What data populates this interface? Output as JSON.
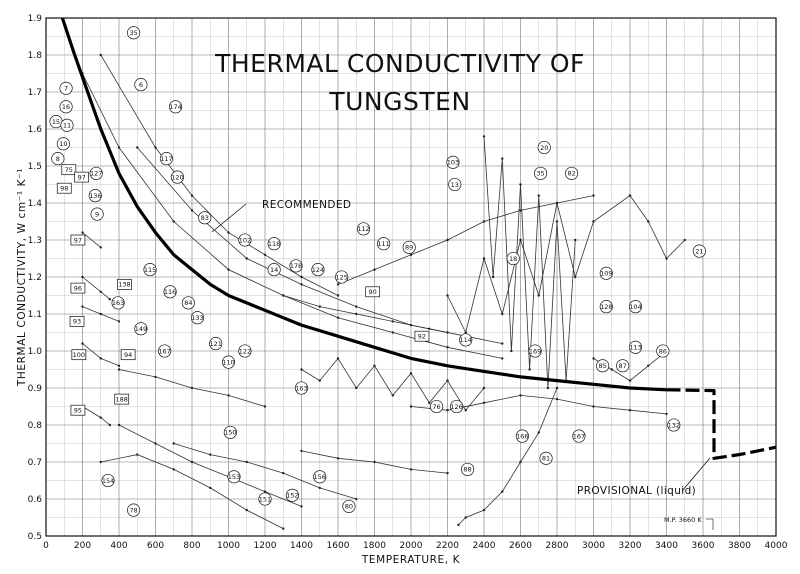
{
  "chart_data": {
    "type": "line",
    "title": [
      "THERMAL CONDUCTIVITY OF",
      "TUNGSTEN"
    ],
    "xlabel": "TEMPERATURE, K",
    "ylabel": "THERMAL CONDUCTIVITY, W cm⁻¹ K⁻¹",
    "xlim": [
      0,
      4000
    ],
    "ylim": [
      0.5,
      1.9
    ],
    "grid": true,
    "x_ticks": [
      0,
      200,
      400,
      600,
      800,
      1000,
      1200,
      1400,
      1600,
      1800,
      2000,
      2200,
      2400,
      2600,
      2800,
      3000,
      3200,
      3400,
      3600,
      3800,
      4000
    ],
    "y_ticks": [
      0.5,
      0.6,
      0.7,
      0.8,
      0.9,
      1.0,
      1.1,
      1.2,
      1.3,
      1.4,
      1.5,
      1.6,
      1.7,
      1.8,
      1.9
    ],
    "y_tick_labels": [
      "0.5",
      "0.6",
      "0.7",
      "0.8",
      "0.9",
      "1.0",
      "1.1",
      "1.2",
      "1.3",
      "1.4",
      "1.5",
      "1.6",
      "1.7",
      "1.8",
      "1.9"
    ],
    "annotations": {
      "recommended": "RECOMMENDED",
      "provisional": "PROVISIONAL (liquid)",
      "melting_point": "M.P. 3660 K"
    },
    "series": [
      {
        "name": "RECOMMENDED",
        "style": "thick",
        "x": [
          90,
          150,
          200,
          250,
          300,
          350,
          400,
          500,
          600,
          700,
          800,
          900,
          1000,
          1200,
          1400,
          1600,
          1800,
          2000,
          2200,
          2400,
          2600,
          2800,
          3000,
          3200,
          3400
        ],
        "y": [
          1.9,
          1.81,
          1.74,
          1.67,
          1.6,
          1.54,
          1.48,
          1.39,
          1.32,
          1.26,
          1.22,
          1.18,
          1.15,
          1.11,
          1.07,
          1.04,
          1.01,
          0.98,
          0.96,
          0.945,
          0.93,
          0.92,
          0.91,
          0.9,
          0.895
        ]
      },
      {
        "name": "PROVISIONAL",
        "style": "thick-dashed",
        "x": [
          3400,
          3660,
          3660,
          3660,
          3800,
          4000
        ],
        "y": [
          0.895,
          0.893,
          0.893,
          0.71,
          0.72,
          0.74
        ]
      }
    ],
    "curve_labels": [
      {
        "id": "35",
        "x": 480,
        "y": 1.86,
        "shape": "circle"
      },
      {
        "id": "6",
        "x": 520,
        "y": 1.72,
        "shape": "circle"
      },
      {
        "id": "174",
        "x": 710,
        "y": 1.66,
        "shape": "circle"
      },
      {
        "id": "7",
        "x": 110,
        "y": 1.71,
        "shape": "circle"
      },
      {
        "id": "16",
        "x": 110,
        "y": 1.66,
        "shape": "circle"
      },
      {
        "id": "15",
        "x": 55,
        "y": 1.62,
        "shape": "circle"
      },
      {
        "id": "11",
        "x": 115,
        "y": 1.61,
        "shape": "circle"
      },
      {
        "id": "10",
        "x": 95,
        "y": 1.56,
        "shape": "circle"
      },
      {
        "id": "8",
        "x": 65,
        "y": 1.52,
        "shape": "circle"
      },
      {
        "id": "75",
        "x": 125,
        "y": 1.49,
        "shape": "square"
      },
      {
        "id": "97",
        "x": 195,
        "y": 1.47,
        "shape": "square"
      },
      {
        "id": "127",
        "x": 275,
        "y": 1.48,
        "shape": "circle"
      },
      {
        "id": "98",
        "x": 100,
        "y": 1.44,
        "shape": "square"
      },
      {
        "id": "136",
        "x": 270,
        "y": 1.42,
        "shape": "circle"
      },
      {
        "id": "117",
        "x": 660,
        "y": 1.52,
        "shape": "circle"
      },
      {
        "id": "120",
        "x": 720,
        "y": 1.47,
        "shape": "circle"
      },
      {
        "id": "9",
        "x": 280,
        "y": 1.37,
        "shape": "circle"
      },
      {
        "id": "83",
        "x": 870,
        "y": 1.36,
        "shape": "circle"
      },
      {
        "id": "97",
        "x": 175,
        "y": 1.3,
        "shape": "square"
      },
      {
        "id": "102",
        "x": 1090,
        "y": 1.3,
        "shape": "circle"
      },
      {
        "id": "118",
        "x": 1250,
        "y": 1.29,
        "shape": "circle"
      },
      {
        "id": "115",
        "x": 570,
        "y": 1.22,
        "shape": "circle"
      },
      {
        "id": "14",
        "x": 1250,
        "y": 1.22,
        "shape": "circle"
      },
      {
        "id": "178",
        "x": 1370,
        "y": 1.23,
        "shape": "circle"
      },
      {
        "id": "124",
        "x": 1490,
        "y": 1.22,
        "shape": "circle"
      },
      {
        "id": "125",
        "x": 1620,
        "y": 1.2,
        "shape": "circle"
      },
      {
        "id": "112",
        "x": 1740,
        "y": 1.33,
        "shape": "circle"
      },
      {
        "id": "111",
        "x": 1850,
        "y": 1.29,
        "shape": "circle"
      },
      {
        "id": "89",
        "x": 1990,
        "y": 1.28,
        "shape": "circle"
      },
      {
        "id": "96",
        "x": 175,
        "y": 1.17,
        "shape": "square"
      },
      {
        "id": "138",
        "x": 430,
        "y": 1.18,
        "shape": "square"
      },
      {
        "id": "116",
        "x": 680,
        "y": 1.16,
        "shape": "circle"
      },
      {
        "id": "90",
        "x": 1790,
        "y": 1.16,
        "shape": "square"
      },
      {
        "id": "84",
        "x": 780,
        "y": 1.13,
        "shape": "circle"
      },
      {
        "id": "163",
        "x": 395,
        "y": 1.13,
        "shape": "circle"
      },
      {
        "id": "133",
        "x": 830,
        "y": 1.09,
        "shape": "circle"
      },
      {
        "id": "93",
        "x": 170,
        "y": 1.08,
        "shape": "square"
      },
      {
        "id": "149",
        "x": 520,
        "y": 1.06,
        "shape": "circle"
      },
      {
        "id": "121",
        "x": 930,
        "y": 1.02,
        "shape": "circle"
      },
      {
        "id": "122",
        "x": 1090,
        "y": 1.0,
        "shape": "circle"
      },
      {
        "id": "92",
        "x": 2060,
        "y": 1.04,
        "shape": "square"
      },
      {
        "id": "114",
        "x": 2300,
        "y": 1.03,
        "shape": "circle"
      },
      {
        "id": "167",
        "x": 650,
        "y": 1.0,
        "shape": "circle"
      },
      {
        "id": "100",
        "x": 180,
        "y": 0.99,
        "shape": "square"
      },
      {
        "id": "94",
        "x": 450,
        "y": 0.99,
        "shape": "square"
      },
      {
        "id": "110",
        "x": 1000,
        "y": 0.97,
        "shape": "circle"
      },
      {
        "id": "163",
        "x": 1400,
        "y": 0.9,
        "shape": "circle"
      },
      {
        "id": "169",
        "x": 2680,
        "y": 1.0,
        "shape": "circle"
      },
      {
        "id": "85",
        "x": 3050,
        "y": 0.96,
        "shape": "circle"
      },
      {
        "id": "87",
        "x": 3160,
        "y": 0.96,
        "shape": "circle"
      },
      {
        "id": "86",
        "x": 3380,
        "y": 1.0,
        "shape": "circle"
      },
      {
        "id": "113",
        "x": 3230,
        "y": 1.01,
        "shape": "circle"
      },
      {
        "id": "128",
        "x": 3070,
        "y": 1.12,
        "shape": "circle"
      },
      {
        "id": "104",
        "x": 3230,
        "y": 1.12,
        "shape": "circle"
      },
      {
        "id": "109",
        "x": 3070,
        "y": 1.21,
        "shape": "circle"
      },
      {
        "id": "21",
        "x": 3580,
        "y": 1.27,
        "shape": "circle"
      },
      {
        "id": "18",
        "x": 2560,
        "y": 1.25,
        "shape": "circle"
      },
      {
        "id": "13",
        "x": 2240,
        "y": 1.45,
        "shape": "circle"
      },
      {
        "id": "20",
        "x": 2730,
        "y": 1.55,
        "shape": "circle"
      },
      {
        "id": "35",
        "x": 2710,
        "y": 1.48,
        "shape": "circle"
      },
      {
        "id": "82",
        "x": 2880,
        "y": 1.48,
        "shape": "circle"
      },
      {
        "id": "103",
        "x": 2230,
        "y": 1.51,
        "shape": "circle"
      },
      {
        "id": "188",
        "x": 415,
        "y": 0.87,
        "shape": "square"
      },
      {
        "id": "95",
        "x": 175,
        "y": 0.84,
        "shape": "square"
      },
      {
        "id": "150",
        "x": 1010,
        "y": 0.78,
        "shape": "circle"
      },
      {
        "id": "76",
        "x": 2140,
        "y": 0.85,
        "shape": "circle"
      },
      {
        "id": "126",
        "x": 2250,
        "y": 0.85,
        "shape": "circle"
      },
      {
        "id": "166",
        "x": 2610,
        "y": 0.77,
        "shape": "circle"
      },
      {
        "id": "167",
        "x": 2920,
        "y": 0.77,
        "shape": "circle"
      },
      {
        "id": "132",
        "x": 3440,
        "y": 0.8,
        "shape": "circle"
      },
      {
        "id": "81",
        "x": 2740,
        "y": 0.71,
        "shape": "circle"
      },
      {
        "id": "88",
        "x": 2310,
        "y": 0.68,
        "shape": "circle"
      },
      {
        "id": "153",
        "x": 1030,
        "y": 0.66,
        "shape": "circle"
      },
      {
        "id": "156",
        "x": 1500,
        "y": 0.66,
        "shape": "circle"
      },
      {
        "id": "154",
        "x": 340,
        "y": 0.65,
        "shape": "circle"
      },
      {
        "id": "151",
        "x": 1200,
        "y": 0.6,
        "shape": "circle"
      },
      {
        "id": "152",
        "x": 1350,
        "y": 0.61,
        "shape": "circle"
      },
      {
        "id": "80",
        "x": 1660,
        "y": 0.58,
        "shape": "circle"
      },
      {
        "id": "78",
        "x": 480,
        "y": 0.57,
        "shape": "circle"
      }
    ],
    "experimental_lines": [
      {
        "x": [
          300,
          600,
          800,
          1000,
          1200,
          1400,
          1600
        ],
        "y": [
          1.8,
          1.55,
          1.42,
          1.32,
          1.26,
          1.2,
          1.15
        ]
      },
      {
        "x": [
          500,
          800,
          1100,
          1400,
          1700,
          2000,
          2200
        ],
        "y": [
          1.55,
          1.38,
          1.25,
          1.18,
          1.12,
          1.07,
          1.05
        ]
      },
      {
        "x": [
          200,
          400,
          700,
          1000,
          1300,
          1600,
          1900,
          2200,
          2500
        ],
        "y": [
          1.75,
          1.55,
          1.35,
          1.22,
          1.15,
          1.09,
          1.05,
          1.01,
          0.98
        ]
      },
      {
        "x": [
          1600,
          1800,
          2000,
          2200,
          2400,
          2600,
          2800,
          3000
        ],
        "y": [
          1.18,
          1.22,
          1.26,
          1.3,
          1.35,
          1.38,
          1.4,
          1.42
        ]
      },
      {
        "x": [
          1300,
          1500,
          1700,
          1900,
          2100,
          2300,
          2500
        ],
        "y": [
          1.15,
          1.12,
          1.1,
          1.08,
          1.06,
          1.04,
          1.02
        ]
      },
      {
        "x": [
          2400,
          2450,
          2500,
          2550,
          2600,
          2650,
          2700,
          2750,
          2800,
          2850,
          2900
        ],
        "y": [
          1.58,
          1.2,
          1.52,
          1.0,
          1.45,
          0.95,
          1.42,
          0.9,
          1.35,
          0.92,
          1.3
        ]
      },
      {
        "x": [
          2200,
          2300,
          2400,
          2500,
          2600,
          2700,
          2800,
          2900,
          3000,
          3200
        ],
        "y": [
          1.15,
          1.05,
          1.25,
          1.1,
          1.3,
          1.15,
          1.4,
          1.2,
          1.35,
          1.42
        ]
      },
      {
        "x": [
          3200,
          3300,
          3400,
          3500
        ],
        "y": [
          1.42,
          1.35,
          1.25,
          1.3
        ]
      },
      {
        "x": [
          400,
          600,
          800,
          1000,
          1200
        ],
        "y": [
          0.95,
          0.93,
          0.9,
          0.88,
          0.85
        ]
      },
      {
        "x": [
          400,
          600,
          800,
          1000,
          1200,
          1400
        ],
        "y": [
          0.8,
          0.75,
          0.7,
          0.66,
          0.62,
          0.58
        ]
      },
      {
        "x": [
          300,
          500,
          700,
          900,
          1100,
          1300
        ],
        "y": [
          0.7,
          0.72,
          0.68,
          0.63,
          0.57,
          0.52
        ]
      },
      {
        "x": [
          200,
          300,
          400
        ],
        "y": [
          1.12,
          1.1,
          1.08
        ]
      },
      {
        "x": [
          200,
          300,
          400
        ],
        "y": [
          1.02,
          0.98,
          0.96
        ]
      },
      {
        "x": [
          200,
          300
        ],
        "y": [
          1.32,
          1.28
        ]
      },
      {
        "x": [
          200,
          300,
          350
        ],
        "y": [
          1.2,
          1.16,
          1.14
        ]
      },
      {
        "x": [
          200,
          300,
          350
        ],
        "y": [
          0.85,
          0.82,
          0.8
        ]
      },
      {
        "x": [
          1400,
          1500,
          1600,
          1700,
          1800,
          1900,
          2000,
          2100,
          2200,
          2300,
          2400
        ],
        "y": [
          0.95,
          0.92,
          0.98,
          0.9,
          0.96,
          0.88,
          0.94,
          0.86,
          0.92,
          0.84,
          0.9
        ]
      },
      {
        "x": [
          2000,
          2200,
          2400,
          2600,
          2800,
          3000,
          3200,
          3400
        ],
        "y": [
          0.85,
          0.84,
          0.86,
          0.88,
          0.87,
          0.85,
          0.84,
          0.83
        ]
      },
      {
        "x": [
          1400,
          1600,
          1800,
          2000,
          2200
        ],
        "y": [
          0.73,
          0.71,
          0.7,
          0.68,
          0.67
        ]
      },
      {
        "x": [
          2260,
          2300,
          2400,
          2500,
          2600,
          2700,
          2800
        ],
        "y": [
          0.53,
          0.55,
          0.57,
          0.62,
          0.7,
          0.78,
          0.9
        ]
      },
      {
        "x": [
          700,
          900,
          1100,
          1300,
          1500,
          1700
        ],
        "y": [
          0.75,
          0.72,
          0.7,
          0.67,
          0.63,
          0.6
        ]
      },
      {
        "x": [
          3000,
          3100,
          3200,
          3300,
          3400
        ],
        "y": [
          0.98,
          0.95,
          0.92,
          0.96,
          1.0
        ]
      }
    ]
  }
}
